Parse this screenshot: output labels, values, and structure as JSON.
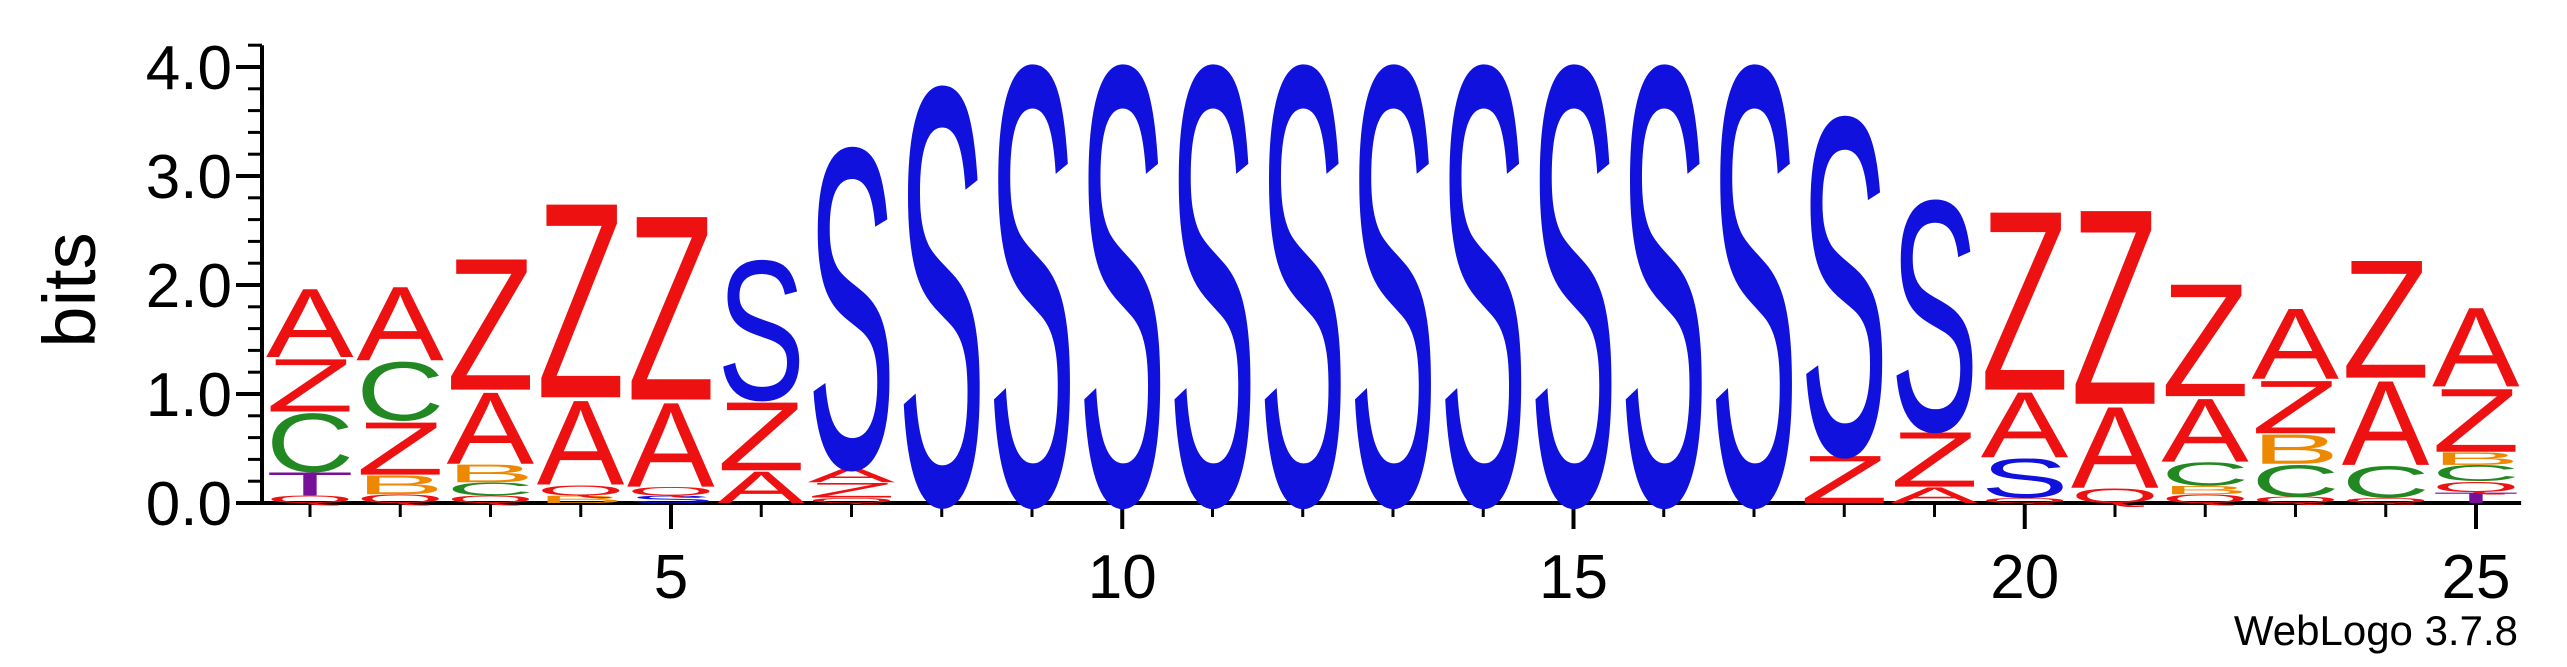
{
  "footer": {
    "credit": "WebLogo 3.7.8"
  },
  "chart_data": {
    "type": "sequence-logo",
    "ylabel": "bits",
    "ylim": [
      0,
      4.2
    ],
    "yticks": [
      "0.0",
      "1.0",
      "2.0",
      "3.0",
      "4.0"
    ],
    "xticks": [
      5,
      10,
      15,
      20,
      25
    ],
    "colors": {
      "A": "#ee1111",
      "Z": "#ee1111",
      "S": "#1111dd",
      "C": "#228822",
      "B": "#ee8800",
      "T": "#771199",
      "Q": "#ee1111"
    },
    "positions": [
      {
        "pos": 1,
        "stack": [
          [
            "Q",
            0.07
          ],
          [
            "T",
            0.22
          ],
          [
            "C",
            0.55
          ],
          [
            "Z",
            0.5
          ],
          [
            "A",
            0.65
          ]
        ]
      },
      {
        "pos": 2,
        "stack": [
          [
            "Q",
            0.08
          ],
          [
            "B",
            0.18
          ],
          [
            "Z",
            0.5
          ],
          [
            "C",
            0.55
          ],
          [
            "A",
            0.7
          ]
        ]
      },
      {
        "pos": 3,
        "stack": [
          [
            "Q",
            0.07
          ],
          [
            "C",
            0.12
          ],
          [
            "B",
            0.17
          ],
          [
            "A",
            0.68
          ],
          [
            "Z",
            1.25
          ]
        ]
      },
      {
        "pos": 4,
        "stack": [
          [
            "B",
            0.07
          ],
          [
            "Q",
            0.1
          ],
          [
            "A",
            0.8
          ],
          [
            "Z",
            1.85
          ]
        ]
      },
      {
        "pos": 5,
        "stack": [
          [
            "S",
            0.07
          ],
          [
            "Q",
            0.08
          ],
          [
            "A",
            0.8
          ],
          [
            "Z",
            1.75
          ]
        ]
      },
      {
        "pos": 6,
        "stack": [
          [
            "A",
            0.3
          ],
          [
            "Z",
            0.65
          ],
          [
            "S",
            1.32
          ]
        ]
      },
      {
        "pos": 7,
        "stack": [
          [
            "Q",
            0.05
          ],
          [
            "Z",
            0.14
          ],
          [
            "A",
            0.14
          ],
          [
            "S",
            3.03
          ]
        ]
      },
      {
        "pos": 8,
        "stack": [
          [
            "S",
            3.95
          ]
        ]
      },
      {
        "pos": 9,
        "stack": [
          [
            "S",
            4.15
          ]
        ]
      },
      {
        "pos": 10,
        "stack": [
          [
            "S",
            4.15
          ]
        ]
      },
      {
        "pos": 11,
        "stack": [
          [
            "S",
            4.15
          ]
        ]
      },
      {
        "pos": 12,
        "stack": [
          [
            "S",
            4.15
          ]
        ]
      },
      {
        "pos": 13,
        "stack": [
          [
            "S",
            4.15
          ]
        ]
      },
      {
        "pos": 14,
        "stack": [
          [
            "S",
            4.15
          ]
        ]
      },
      {
        "pos": 15,
        "stack": [
          [
            "S",
            4.15
          ]
        ]
      },
      {
        "pos": 16,
        "stack": [
          [
            "S",
            4.15
          ]
        ]
      },
      {
        "pos": 17,
        "stack": [
          [
            "S",
            4.15
          ]
        ]
      },
      {
        "pos": 18,
        "stack": [
          [
            "Z",
            0.45
          ],
          [
            "S",
            3.2
          ]
        ]
      },
      {
        "pos": 19,
        "stack": [
          [
            "A",
            0.15
          ],
          [
            "Z",
            0.52
          ],
          [
            "S",
            2.18
          ]
        ]
      },
      {
        "pos": 20,
        "stack": [
          [
            "Q",
            0.05
          ],
          [
            "S",
            0.37
          ],
          [
            "A",
            0.62
          ],
          [
            "Z",
            1.7
          ]
        ]
      },
      {
        "pos": 21,
        "stack": [
          [
            "Q",
            0.14
          ],
          [
            "A",
            0.77
          ],
          [
            "Z",
            1.85
          ]
        ]
      },
      {
        "pos": 22,
        "stack": [
          [
            "Q",
            0.08
          ],
          [
            "B",
            0.08
          ],
          [
            "C",
            0.22
          ],
          [
            "A",
            0.6
          ],
          [
            "Z",
            1.07
          ]
        ]
      },
      {
        "pos": 23,
        "stack": [
          [
            "Q",
            0.06
          ],
          [
            "C",
            0.3
          ],
          [
            "B",
            0.28
          ],
          [
            "Z",
            0.5
          ],
          [
            "A",
            0.67
          ]
        ]
      },
      {
        "pos": 24,
        "stack": [
          [
            "Q",
            0.05
          ],
          [
            "C",
            0.3
          ],
          [
            "A",
            0.8
          ],
          [
            "Z",
            1.12
          ]
        ]
      },
      {
        "pos": 25,
        "stack": [
          [
            "T",
            0.1
          ],
          [
            "Q",
            0.1
          ],
          [
            "C",
            0.15
          ],
          [
            "B",
            0.12
          ],
          [
            "Z",
            0.6
          ],
          [
            "A",
            0.75
          ]
        ]
      }
    ]
  }
}
